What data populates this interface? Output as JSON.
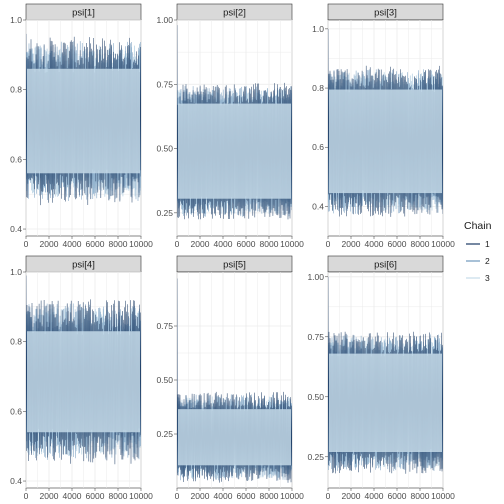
{
  "chart_data": {
    "type": "line",
    "facets": [
      {
        "strip": "psi[1]",
        "xlim": [
          0,
          10000
        ],
        "ylim": [
          0.38,
          1.0
        ],
        "yticks": [
          0.4,
          0.6,
          0.8,
          1.0
        ],
        "ytick_labels": [
          "0.4",
          "0.6",
          "0.8",
          "1.0"
        ],
        "band": [
          0.52,
          0.9
        ],
        "spread": 0.04,
        "start": 0.96
      },
      {
        "strip": "psi[2]",
        "xlim": [
          0,
          10000
        ],
        "ylim": [
          0.16,
          1.0
        ],
        "yticks": [
          0.25,
          0.5,
          0.75,
          1.0
        ],
        "ytick_labels": [
          "0.25",
          "0.50",
          "0.75",
          "1.00"
        ],
        "band": [
          0.27,
          0.71
        ],
        "spread": 0.035,
        "start": 0.98
      },
      {
        "strip": "psi[3]",
        "xlim": [
          0,
          10000
        ],
        "ylim": [
          0.3,
          1.03
        ],
        "yticks": [
          0.4,
          0.6,
          0.8,
          1.0
        ],
        "ytick_labels": [
          "0.4",
          "0.6",
          "0.8",
          "1.0"
        ],
        "band": [
          0.41,
          0.83
        ],
        "spread": 0.035,
        "start": 1.0
      },
      {
        "strip": "psi[4]",
        "xlim": [
          0,
          10000
        ],
        "ylim": [
          0.38,
          1.0
        ],
        "yticks": [
          0.4,
          0.6,
          0.8,
          1.0
        ],
        "ytick_labels": [
          "0.4",
          "0.6",
          "0.8",
          "1.0"
        ],
        "band": [
          0.5,
          0.87
        ],
        "spread": 0.04,
        "start": 0.99
      },
      {
        "strip": "psi[5]",
        "xlim": [
          0,
          10000
        ],
        "ylim": [
          0.0,
          1.0
        ],
        "yticks": [
          0.25,
          0.5,
          0.75
        ],
        "ytick_labels": [
          "0.25",
          "0.50",
          "0.75"
        ],
        "band": [
          0.07,
          0.4
        ],
        "spread": 0.035,
        "start": 0.97
      },
      {
        "strip": "psi[6]",
        "xlim": [
          0,
          10000
        ],
        "ylim": [
          0.12,
          1.02
        ],
        "yticks": [
          0.25,
          0.5,
          0.75,
          1.0
        ],
        "ytick_labels": [
          "0.25",
          "0.50",
          "0.75",
          "1.00"
        ],
        "band": [
          0.23,
          0.72
        ],
        "spread": 0.04,
        "start": 1.0
      }
    ],
    "xticks": [
      0,
      2000,
      4000,
      6000,
      8000,
      10000
    ],
    "xtick_labels": [
      "0",
      "2000",
      "4000",
      "6000",
      "8000",
      "10000"
    ],
    "series": [
      {
        "name": "1",
        "color": "#1b3a63"
      },
      {
        "name": "2",
        "color": "#6f98bc"
      },
      {
        "name": "3",
        "color": "#c6dbe9"
      }
    ],
    "legend": {
      "title": "Chain",
      "position": "right"
    },
    "grid": true
  }
}
